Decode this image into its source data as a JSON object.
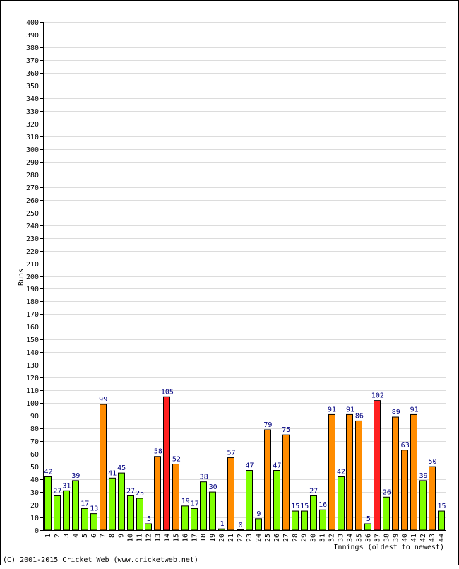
{
  "chart_data": {
    "type": "bar",
    "ylabel": "Runs",
    "xlabel": "Innings (oldest to newest)",
    "ylim": [
      0,
      400
    ],
    "ytick_step": 10,
    "grid": true,
    "legend": "none",
    "categories": [
      "1",
      "2",
      "3",
      "4",
      "5",
      "6",
      "7",
      "8",
      "9",
      "10",
      "11",
      "12",
      "13",
      "14",
      "15",
      "16",
      "17",
      "18",
      "19",
      "20",
      "21",
      "22",
      "23",
      "24",
      "25",
      "26",
      "27",
      "28",
      "29",
      "30",
      "31",
      "32",
      "33",
      "34",
      "35",
      "36",
      "37",
      "38",
      "39",
      "40",
      "41",
      "42",
      "43",
      "44"
    ],
    "values": [
      42,
      27,
      31,
      39,
      17,
      13,
      99,
      41,
      45,
      27,
      25,
      5,
      58,
      105,
      52,
      19,
      17,
      38,
      30,
      1,
      57,
      0,
      47,
      9,
      79,
      47,
      75,
      15,
      15,
      27,
      16,
      91,
      42,
      91,
      86,
      5,
      102,
      26,
      89,
      63,
      91,
      39,
      50,
      15
    ],
    "colors": {
      "under_50": "#80ff00",
      "fifty_plus": "#ff8c00",
      "hundred_plus": "#ff2020",
      "not_out": "#ffffff",
      "value_label": "#000080",
      "grid": "#dcdcdc",
      "axis": "#000000"
    }
  },
  "footer": {
    "copyright": "(C) 2001-2015 Cricket Web (www.cricketweb.net)"
  }
}
